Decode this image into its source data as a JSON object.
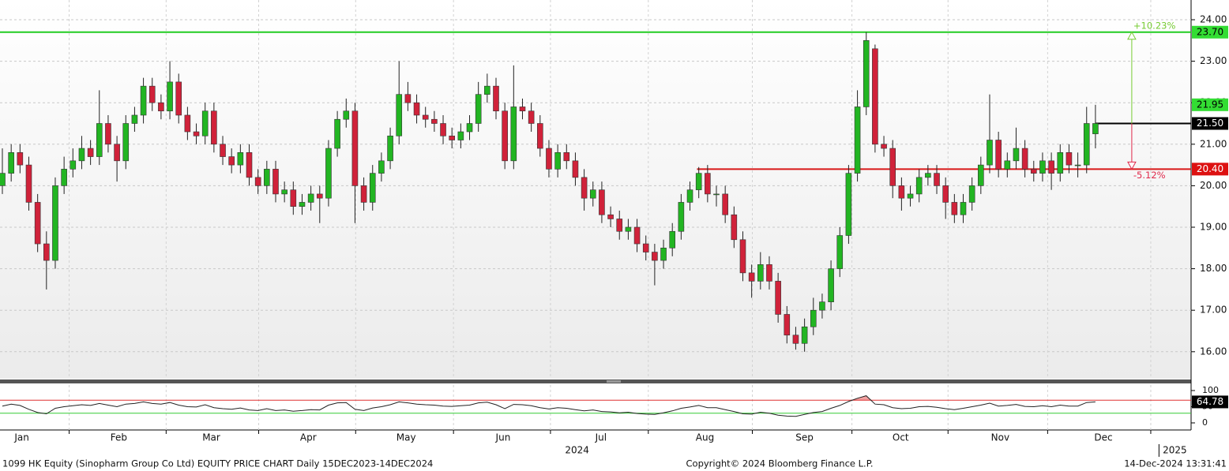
{
  "chart_data": [
    {
      "type": "candlestick",
      "xlim": [
        -0.27,
        134.85
      ],
      "ylim": [
        15.35,
        24.475
      ],
      "xticks": [
        {
          "value": 2.2,
          "label": "Jan"
        },
        {
          "value": 13.2,
          "label": "Feb"
        },
        {
          "value": 23.7,
          "label": "Mar"
        },
        {
          "value": 34.7,
          "label": "Apr"
        },
        {
          "value": 45.8,
          "label": "May"
        },
        {
          "value": 56.8,
          "label": "Jun"
        },
        {
          "value": 67.9,
          "label": "Jul"
        },
        {
          "value": 79.7,
          "label": "Aug"
        },
        {
          "value": 91.0,
          "label": "Sep"
        },
        {
          "value": 101.9,
          "label": "Oct"
        },
        {
          "value": 113.2,
          "label": "Nov"
        },
        {
          "value": 124.9,
          "label": "Dec"
        }
      ],
      "year_ticks": [
        {
          "value": 65.2,
          "label": "2024"
        },
        {
          "value": 133.0,
          "label": "2025"
        }
      ],
      "yticks": [
        {
          "value": 16,
          "label": "16.00"
        },
        {
          "value": 17,
          "label": "17.00"
        },
        {
          "value": 18,
          "label": "18.00"
        },
        {
          "value": 19,
          "label": "19.00"
        },
        {
          "value": 20,
          "label": "20.00"
        },
        {
          "value": 21,
          "label": "21.00"
        },
        {
          "value": 22,
          "label": "22.00"
        },
        {
          "value": 23,
          "label": "23.00"
        },
        {
          "value": 24,
          "label": "24.00"
        }
      ],
      "grid": true,
      "up_color": "#22b522",
      "down_color": "#d0223a",
      "open": [
        20.0,
        20.3,
        20.8,
        20.5,
        19.6,
        18.6,
        18.2,
        20.0,
        20.4,
        20.6,
        20.9,
        20.7,
        21.5,
        21.0,
        20.6,
        21.5,
        21.7,
        22.4,
        22.0,
        21.8,
        22.5,
        21.7,
        21.3,
        21.2,
        21.8,
        21.0,
        20.7,
        20.5,
        20.8,
        20.2,
        20.0,
        20.4,
        19.8,
        19.9,
        19.5,
        19.6,
        19.8,
        19.7,
        20.9,
        21.6,
        21.8,
        20.0,
        19.6,
        20.3,
        20.6,
        21.2,
        22.2,
        22.0,
        21.7,
        21.6,
        21.5,
        21.2,
        21.1,
        21.3,
        21.5,
        22.2,
        22.4,
        21.8,
        20.6,
        21.9,
        21.8,
        21.5,
        20.9,
        20.4,
        20.8,
        20.6,
        20.2,
        19.7,
        19.9,
        19.3,
        19.2,
        18.9,
        19.0,
        18.6,
        18.4,
        18.2,
        18.5,
        18.9,
        19.6,
        19.9,
        20.3,
        19.8,
        19.8,
        19.3,
        18.7,
        17.9,
        17.7,
        18.1,
        17.7,
        16.9,
        16.4,
        16.2,
        16.6,
        17.0,
        17.2,
        18.0,
        18.8,
        20.3,
        21.9,
        23.3,
        21.0,
        20.9,
        20.0,
        19.7,
        19.8,
        20.2,
        20.3,
        20.0,
        19.6,
        19.3,
        19.6,
        20.0,
        20.5,
        21.1,
        20.4,
        20.6,
        20.9,
        20.4,
        20.3,
        20.6,
        20.3,
        20.8,
        20.5,
        20.5,
        21.25
      ],
      "high": [
        20.9,
        21.0,
        21.0,
        20.7,
        19.8,
        18.9,
        20.2,
        20.7,
        20.9,
        21.2,
        21.1,
        22.3,
        21.7,
        21.2,
        21.7,
        21.9,
        22.6,
        22.6,
        22.2,
        23.0,
        22.7,
        21.9,
        21.5,
        22.0,
        22.0,
        21.2,
        20.9,
        21.0,
        21.0,
        20.4,
        20.6,
        20.6,
        20.1,
        20.1,
        19.8,
        20.0,
        20.0,
        21.1,
        21.8,
        22.1,
        22.0,
        20.2,
        20.5,
        20.8,
        21.4,
        23.0,
        22.5,
        22.2,
        21.9,
        21.8,
        21.7,
        21.4,
        21.5,
        21.7,
        22.5,
        22.7,
        22.6,
        22.0,
        22.9,
        22.1,
        22.0,
        21.7,
        21.1,
        21.0,
        21.0,
        20.8,
        20.4,
        20.1,
        20.1,
        19.5,
        19.4,
        19.2,
        19.2,
        18.8,
        18.6,
        18.7,
        19.1,
        19.8,
        20.1,
        20.45,
        20.5,
        20.0,
        20.0,
        19.5,
        18.9,
        18.1,
        18.4,
        18.3,
        17.9,
        17.1,
        16.6,
        16.8,
        17.3,
        17.4,
        18.2,
        19.0,
        20.5,
        22.3,
        23.7,
        23.4,
        21.2,
        21.1,
        20.2,
        20.0,
        20.4,
        20.5,
        20.5,
        20.2,
        19.8,
        19.8,
        20.2,
        20.7,
        22.2,
        21.3,
        20.8,
        21.4,
        21.1,
        20.6,
        20.8,
        20.8,
        21.0,
        21.0,
        20.8,
        21.9,
        21.95
      ],
      "low": [
        19.8,
        20.1,
        20.3,
        19.4,
        18.4,
        17.5,
        18.0,
        19.8,
        20.2,
        20.4,
        20.5,
        20.5,
        20.8,
        20.1,
        20.4,
        21.3,
        21.5,
        21.8,
        21.6,
        21.6,
        21.5,
        21.1,
        21.0,
        21.0,
        20.8,
        20.5,
        20.3,
        20.3,
        20.0,
        19.8,
        19.8,
        19.6,
        19.6,
        19.3,
        19.3,
        19.4,
        19.1,
        19.5,
        20.7,
        21.4,
        19.1,
        19.4,
        19.4,
        20.1,
        20.4,
        21.0,
        21.8,
        21.5,
        21.4,
        21.3,
        21.0,
        20.9,
        20.9,
        21.1,
        21.3,
        22.0,
        21.6,
        20.4,
        20.4,
        21.6,
        21.3,
        20.7,
        20.2,
        20.2,
        20.4,
        20.0,
        19.4,
        19.5,
        19.1,
        19.0,
        18.7,
        18.7,
        18.4,
        18.2,
        17.6,
        18.0,
        18.3,
        18.7,
        19.4,
        19.7,
        19.6,
        19.5,
        19.1,
        18.5,
        17.7,
        17.3,
        17.5,
        17.5,
        16.7,
        16.2,
        16.05,
        16.0,
        16.4,
        16.8,
        17.0,
        17.8,
        18.6,
        20.1,
        21.7,
        20.8,
        20.7,
        19.7,
        19.4,
        19.5,
        19.6,
        20.0,
        19.8,
        19.2,
        19.1,
        19.1,
        19.4,
        19.8,
        20.3,
        20.2,
        20.2,
        20.4,
        20.2,
        20.1,
        20.1,
        19.9,
        20.1,
        20.3,
        20.2,
        20.3,
        20.9
      ],
      "close": [
        20.3,
        20.8,
        20.5,
        19.6,
        18.6,
        18.2,
        20.0,
        20.4,
        20.6,
        20.9,
        20.7,
        21.5,
        21.0,
        20.6,
        21.5,
        21.7,
        22.4,
        22.0,
        21.8,
        22.5,
        21.7,
        21.3,
        21.2,
        21.8,
        21.0,
        20.7,
        20.5,
        20.8,
        20.2,
        20.0,
        20.4,
        19.8,
        19.9,
        19.5,
        19.6,
        19.8,
        19.7,
        20.9,
        21.6,
        21.8,
        20.0,
        19.6,
        20.3,
        20.6,
        21.2,
        22.2,
        22.0,
        21.7,
        21.6,
        21.5,
        21.2,
        21.1,
        21.3,
        21.5,
        22.2,
        22.4,
        21.8,
        20.6,
        21.9,
        21.8,
        21.5,
        20.9,
        20.4,
        20.8,
        20.6,
        20.2,
        19.7,
        19.9,
        19.3,
        19.2,
        18.9,
        19.0,
        18.6,
        18.4,
        18.2,
        18.5,
        18.9,
        19.6,
        19.9,
        20.3,
        19.8,
        19.8,
        19.3,
        18.7,
        17.9,
        17.7,
        18.1,
        17.7,
        16.9,
        16.4,
        16.2,
        16.6,
        17.0,
        17.2,
        18.0,
        18.8,
        20.3,
        21.9,
        23.5,
        21.0,
        20.9,
        20.0,
        19.7,
        19.8,
        20.2,
        20.3,
        20.0,
        19.6,
        19.3,
        19.6,
        20.0,
        20.5,
        21.1,
        20.4,
        20.6,
        20.9,
        20.4,
        20.3,
        20.6,
        20.3,
        20.8,
        20.5,
        20.5,
        21.5,
        21.5
      ],
      "hlines": [
        {
          "value": 23.7,
          "color": "#22cc22",
          "x0": -0.27
        },
        {
          "value": 20.4,
          "color": "#d81818",
          "x0": 78.8
        },
        {
          "value": 21.5,
          "color": "#000000",
          "x0": 124
        }
      ],
      "price_labels": [
        {
          "value": 23.7,
          "label": "23.70",
          "bg": "#33dd33",
          "fg": "#000000"
        },
        {
          "value": 21.95,
          "label": "21.95",
          "bg": "#33dd33",
          "fg": "#000000"
        },
        {
          "value": 21.5,
          "label": "21.50",
          "bg": "#000000",
          "fg": "#ffffff"
        },
        {
          "value": 20.4,
          "label": "20.40",
          "bg": "#dd1111",
          "fg": "#ffffff"
        }
      ],
      "annotations": [
        {
          "text": "+10.23%",
          "color": "#77cc33"
        },
        {
          "text": "-5.12%",
          "color": "#e0284a"
        }
      ]
    },
    {
      "type": "line",
      "ylim": [
        0,
        100
      ],
      "yticks": [
        0,
        50,
        100
      ],
      "color": "#222222",
      "bands": [
        {
          "value": 70,
          "color": "#e03030"
        },
        {
          "value": 30,
          "color": "#33cc33"
        }
      ],
      "values": [
        52,
        58,
        54,
        42,
        32,
        28,
        45,
        50,
        53,
        56,
        54,
        60,
        55,
        50,
        58,
        60,
        65,
        60,
        58,
        63,
        55,
        50,
        49,
        56,
        47,
        44,
        42,
        46,
        40,
        38,
        44,
        38,
        40,
        36,
        38,
        41,
        40,
        55,
        62,
        63,
        42,
        38,
        46,
        50,
        56,
        65,
        62,
        58,
        56,
        55,
        52,
        51,
        53,
        55,
        62,
        64,
        56,
        44,
        57,
        56,
        53,
        47,
        43,
        47,
        45,
        41,
        37,
        40,
        35,
        34,
        31,
        33,
        29,
        27,
        26,
        31,
        37,
        45,
        49,
        54,
        47,
        47,
        41,
        35,
        28,
        27,
        33,
        30,
        24,
        21,
        20,
        26,
        32,
        35,
        45,
        54,
        66,
        76,
        84,
        58,
        56,
        47,
        44,
        45,
        50,
        51,
        48,
        44,
        41,
        45,
        50,
        55,
        61,
        52,
        54,
        57,
        51,
        50,
        53,
        50,
        55,
        52,
        52,
        63,
        64.78
      ],
      "last_label": "64.78"
    }
  ],
  "footer": {
    "left": "1099 HK Equity (Sinopharm Group Co Ltd) EQUITY PRICE CHART  Daily 15DEC2023-14DEC2024",
    "center": "Copyright© 2024 Bloomberg Finance L.P.",
    "right": "14-Dec-2024 13:31:41"
  }
}
